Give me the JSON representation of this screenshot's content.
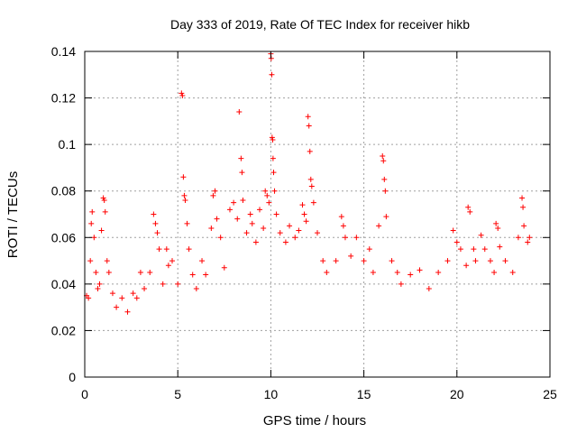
{
  "chart_data": {
    "type": "scatter",
    "title": "Day 333 of 2019, Rate Of TEC Index for receiver hikb",
    "xlabel": "GPS time / hours",
    "ylabel": "ROTI / TECUs",
    "xlim": [
      0,
      25
    ],
    "ylim": [
      0,
      0.14
    ],
    "xticks": [
      0,
      5,
      10,
      15,
      20,
      25
    ],
    "yticks": [
      0,
      0.02,
      0.04,
      0.06,
      0.08,
      0.1,
      0.12,
      0.14
    ],
    "xtick_labels": [
      "0",
      "5",
      "10",
      "15",
      "20",
      "25"
    ],
    "ytick_labels": [
      "0",
      "0.02",
      "0.04",
      "0.06",
      "0.08",
      "0.1",
      "0.12",
      "0.14"
    ],
    "grid": true,
    "marker": "+",
    "color": "#ff0000",
    "series": [
      {
        "points": [
          [
            0.1,
            0.035
          ],
          [
            0.2,
            0.034
          ],
          [
            0.3,
            0.05
          ],
          [
            0.35,
            0.066
          ],
          [
            0.4,
            0.071
          ],
          [
            0.5,
            0.06
          ],
          [
            0.6,
            0.045
          ],
          [
            0.7,
            0.038
          ],
          [
            0.8,
            0.04
          ],
          [
            0.9,
            0.063
          ],
          [
            1.0,
            0.077
          ],
          [
            1.05,
            0.076
          ],
          [
            1.1,
            0.071
          ],
          [
            1.2,
            0.05
          ],
          [
            1.3,
            0.045
          ],
          [
            1.5,
            0.036
          ],
          [
            1.7,
            0.03
          ],
          [
            2.0,
            0.034
          ],
          [
            2.3,
            0.028
          ],
          [
            2.6,
            0.036
          ],
          [
            2.8,
            0.034
          ],
          [
            3.0,
            0.045
          ],
          [
            3.2,
            0.038
          ],
          [
            3.5,
            0.045
          ],
          [
            3.7,
            0.07
          ],
          [
            3.8,
            0.066
          ],
          [
            3.9,
            0.062
          ],
          [
            4.0,
            0.055
          ],
          [
            4.2,
            0.04
          ],
          [
            4.4,
            0.055
          ],
          [
            4.5,
            0.048
          ],
          [
            4.7,
            0.05
          ],
          [
            5.0,
            0.04
          ],
          [
            5.2,
            0.122
          ],
          [
            5.25,
            0.121
          ],
          [
            5.3,
            0.086
          ],
          [
            5.35,
            0.078
          ],
          [
            5.4,
            0.076
          ],
          [
            5.5,
            0.066
          ],
          [
            5.6,
            0.055
          ],
          [
            5.8,
            0.044
          ],
          [
            6.0,
            0.038
          ],
          [
            6.3,
            0.05
          ],
          [
            6.5,
            0.044
          ],
          [
            6.8,
            0.064
          ],
          [
            6.9,
            0.078
          ],
          [
            7.0,
            0.08
          ],
          [
            7.1,
            0.068
          ],
          [
            7.3,
            0.06
          ],
          [
            7.5,
            0.047
          ],
          [
            7.8,
            0.072
          ],
          [
            8.0,
            0.075
          ],
          [
            8.2,
            0.068
          ],
          [
            8.3,
            0.114
          ],
          [
            8.4,
            0.094
          ],
          [
            8.45,
            0.088
          ],
          [
            8.5,
            0.076
          ],
          [
            8.7,
            0.062
          ],
          [
            8.9,
            0.07
          ],
          [
            9.0,
            0.066
          ],
          [
            9.2,
            0.058
          ],
          [
            9.4,
            0.072
          ],
          [
            9.6,
            0.064
          ],
          [
            9.7,
            0.08
          ],
          [
            9.8,
            0.078
          ],
          [
            9.9,
            0.075
          ],
          [
            10.0,
            0.139
          ],
          [
            10.02,
            0.137
          ],
          [
            10.05,
            0.13
          ],
          [
            10.07,
            0.103
          ],
          [
            10.1,
            0.102
          ],
          [
            10.12,
            0.094
          ],
          [
            10.15,
            0.088
          ],
          [
            10.2,
            0.08
          ],
          [
            10.3,
            0.07
          ],
          [
            10.5,
            0.062
          ],
          [
            10.8,
            0.058
          ],
          [
            11.0,
            0.065
          ],
          [
            11.3,
            0.06
          ],
          [
            11.5,
            0.063
          ],
          [
            11.7,
            0.074
          ],
          [
            11.8,
            0.07
          ],
          [
            11.9,
            0.067
          ],
          [
            12.0,
            0.112
          ],
          [
            12.05,
            0.108
          ],
          [
            12.1,
            0.097
          ],
          [
            12.15,
            0.085
          ],
          [
            12.2,
            0.082
          ],
          [
            12.3,
            0.075
          ],
          [
            12.5,
            0.062
          ],
          [
            12.8,
            0.05
          ],
          [
            13.0,
            0.045
          ],
          [
            13.5,
            0.05
          ],
          [
            13.8,
            0.069
          ],
          [
            13.9,
            0.065
          ],
          [
            14.0,
            0.06
          ],
          [
            14.3,
            0.052
          ],
          [
            14.6,
            0.06
          ],
          [
            15.0,
            0.05
          ],
          [
            15.3,
            0.055
          ],
          [
            15.5,
            0.045
          ],
          [
            15.8,
            0.065
          ],
          [
            16.0,
            0.095
          ],
          [
            16.05,
            0.093
          ],
          [
            16.1,
            0.085
          ],
          [
            16.15,
            0.08
          ],
          [
            16.2,
            0.069
          ],
          [
            16.5,
            0.05
          ],
          [
            16.8,
            0.045
          ],
          [
            17.0,
            0.04
          ],
          [
            17.5,
            0.044
          ],
          [
            18.0,
            0.046
          ],
          [
            18.5,
            0.038
          ],
          [
            19.0,
            0.045
          ],
          [
            19.5,
            0.05
          ],
          [
            19.8,
            0.063
          ],
          [
            20.0,
            0.058
          ],
          [
            20.2,
            0.055
          ],
          [
            20.5,
            0.048
          ],
          [
            20.6,
            0.073
          ],
          [
            20.7,
            0.071
          ],
          [
            20.9,
            0.055
          ],
          [
            21.0,
            0.05
          ],
          [
            21.3,
            0.061
          ],
          [
            21.5,
            0.055
          ],
          [
            21.8,
            0.05
          ],
          [
            22.0,
            0.045
          ],
          [
            22.1,
            0.066
          ],
          [
            22.2,
            0.064
          ],
          [
            22.3,
            0.056
          ],
          [
            22.6,
            0.05
          ],
          [
            23.0,
            0.045
          ],
          [
            23.3,
            0.06
          ],
          [
            23.5,
            0.077
          ],
          [
            23.55,
            0.073
          ],
          [
            23.6,
            0.065
          ],
          [
            23.8,
            0.058
          ],
          [
            23.9,
            0.06
          ]
        ]
      }
    ]
  }
}
